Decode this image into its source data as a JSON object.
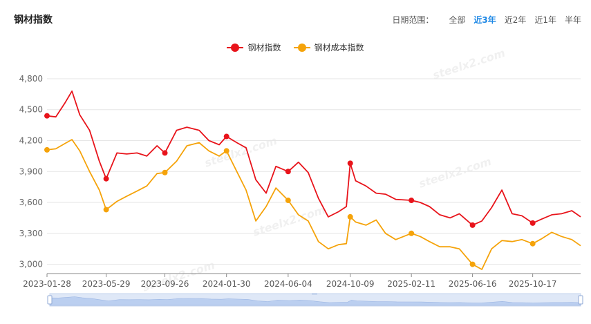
{
  "title": "钢材指数",
  "range": {
    "label": "日期范围：",
    "options": [
      "全部",
      "近3年",
      "近2年",
      "近1年",
      "半年"
    ],
    "active": "近3年"
  },
  "watermark": "steelx2.com",
  "colors": {
    "steel": "#e8141b",
    "cost": "#f5a30a",
    "grid": "#e6e6e6",
    "axis": "#8a8a8a",
    "accent": "#1e88e5"
  },
  "chart_data": {
    "type": "line",
    "x": [
      "2023-01-28",
      "2023-02-15",
      "2023-03-05",
      "2023-03-20",
      "2023-04-05",
      "2023-04-25",
      "2023-05-15",
      "2023-05-29",
      "2023-06-20",
      "2023-07-10",
      "2023-07-31",
      "2023-08-20",
      "2023-09-10",
      "2023-09-26",
      "2023-10-20",
      "2023-11-10",
      "2023-12-05",
      "2023-12-25",
      "2024-01-15",
      "2024-01-30",
      "2024-02-20",
      "2024-03-10",
      "2024-03-30",
      "2024-04-20",
      "2024-05-10",
      "2024-06-04",
      "2024-06-25",
      "2024-07-15",
      "2024-08-05",
      "2024-08-25",
      "2024-09-15",
      "2024-10-01",
      "2024-10-09",
      "2024-10-20",
      "2024-11-10",
      "2024-12-01",
      "2024-12-20",
      "2025-01-10",
      "2025-02-11",
      "2025-03-01",
      "2025-03-20",
      "2025-04-10",
      "2025-05-01",
      "2025-05-20",
      "2025-06-16",
      "2025-07-05",
      "2025-07-25",
      "2025-08-15",
      "2025-09-05",
      "2025-09-25",
      "2025-10-17",
      "2025-11-05",
      "2025-11-25",
      "2025-12-15",
      "2026-01-05",
      "2026-01-23"
    ],
    "series": [
      {
        "name": "钢材指数",
        "values": [
          4440,
          4430,
          4560,
          4680,
          4450,
          4300,
          4000,
          3830,
          4080,
          4070,
          4080,
          4050,
          4150,
          4080,
          4300,
          4330,
          4300,
          4200,
          4160,
          4240,
          4180,
          4130,
          3820,
          3690,
          3950,
          3900,
          3990,
          3890,
          3640,
          3460,
          3510,
          3560,
          3980,
          3810,
          3760,
          3690,
          3680,
          3630,
          3620,
          3600,
          3560,
          3480,
          3450,
          3490,
          3380,
          3420,
          3550,
          3720,
          3490,
          3470,
          3400,
          3440,
          3480,
          3490,
          3520,
          3460
        ]
      },
      {
        "name": "钢材成本指数",
        "values": [
          4110,
          4120,
          4170,
          4210,
          4100,
          3900,
          3720,
          3530,
          3610,
          3660,
          3710,
          3760,
          3880,
          3890,
          4000,
          4150,
          4180,
          4100,
          4050,
          4100,
          3900,
          3720,
          3420,
          3560,
          3740,
          3620,
          3480,
          3420,
          3220,
          3150,
          3190,
          3200,
          3460,
          3410,
          3380,
          3430,
          3300,
          3240,
          3300,
          3270,
          3220,
          3170,
          3170,
          3150,
          3000,
          2950,
          3150,
          3230,
          3220,
          3240,
          3200,
          3250,
          3310,
          3270,
          3240,
          3180
        ]
      }
    ],
    "markers": [
      0,
      7,
      13,
      19,
      25,
      32,
      38,
      44,
      50
    ],
    "x_ticks": [
      "2023-01-28",
      "2023-05-29",
      "2023-09-26",
      "2024-01-30",
      "2024-06-04",
      "2024-10-09",
      "2025-02-11",
      "2025-06-16",
      "2025-10-17"
    ],
    "y_ticks": [
      3000,
      3300,
      3600,
      3900,
      4200,
      4500,
      4800
    ],
    "y_tick_labels": [
      "3,000",
      "3,300",
      "3,600",
      "3,900",
      "4,200",
      "4,500",
      "4,800"
    ],
    "ylim": [
      2910,
      4860
    ],
    "grid": true,
    "legend_position": "top-center"
  }
}
